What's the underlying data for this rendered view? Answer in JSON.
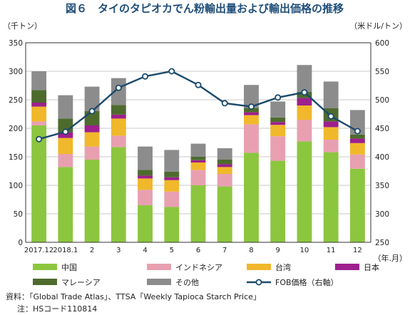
{
  "chart_data": {
    "type": "bar",
    "stacked": true,
    "title": "図６　タイのタピオカでん粉輸出量および輸出価格の推移",
    "y_left_label": "（千トン）",
    "y_right_label": "（米ドル/トン）",
    "x_unit_label": "（年.月）",
    "categories": [
      "2017.12",
      "2018.1",
      "2",
      "3",
      "4",
      "5",
      "6",
      "7",
      "8",
      "9",
      "10",
      "11",
      "12"
    ],
    "y_left_ticks": [
      "0",
      "50",
      "100",
      "150",
      "200",
      "250",
      "300",
      "350"
    ],
    "y_right_ticks": [
      "250",
      "300",
      "350",
      "400",
      "450",
      "500",
      "550",
      "600"
    ],
    "ylim_left": [
      0,
      350
    ],
    "ylim_right": [
      250,
      600
    ],
    "series": [
      {
        "name": "中国",
        "color": "#8cc63f",
        "values": [
          205,
          132,
          145,
          167,
          65,
          62,
          100,
          98,
          157,
          143,
          177,
          158,
          129
        ]
      },
      {
        "name": "インドネシア",
        "color": "#e8a0b0",
        "values": [
          7,
          23,
          23,
          20,
          27,
          27,
          27,
          22,
          50,
          43,
          38,
          22,
          25
        ]
      },
      {
        "name": "台湾",
        "color": "#f0b82a",
        "values": [
          26,
          28,
          25,
          30,
          20,
          20,
          13,
          12,
          16,
          20,
          25,
          22,
          20
        ]
      },
      {
        "name": "日本",
        "color": "#9e1f8e",
        "values": [
          7,
          10,
          12,
          7,
          5,
          5,
          4,
          5,
          5,
          5,
          13,
          10,
          8
        ]
      },
      {
        "name": "マレーシア",
        "color": "#4e6b2e",
        "values": [
          22,
          24,
          25,
          17,
          10,
          10,
          6,
          8,
          8,
          8,
          11,
          23,
          7
        ]
      },
      {
        "name": "その他",
        "color": "#8c8c8c",
        "values": [
          33,
          41,
          43,
          47,
          41,
          38,
          23,
          20,
          40,
          28,
          47,
          47,
          43
        ]
      }
    ],
    "line_series": {
      "name": "FOB価格（右軸）",
      "color": "#1a4a6b",
      "values": [
        431,
        444,
        480,
        521,
        541,
        550,
        526,
        494,
        488,
        504,
        513,
        471,
        445
      ]
    },
    "legend_position": "bottom"
  },
  "notes": {
    "source": "資料：「Global Trade Atlas」、TTSA「Weekly Tapioca Starch Price」",
    "note": "注：HSコード110814"
  }
}
